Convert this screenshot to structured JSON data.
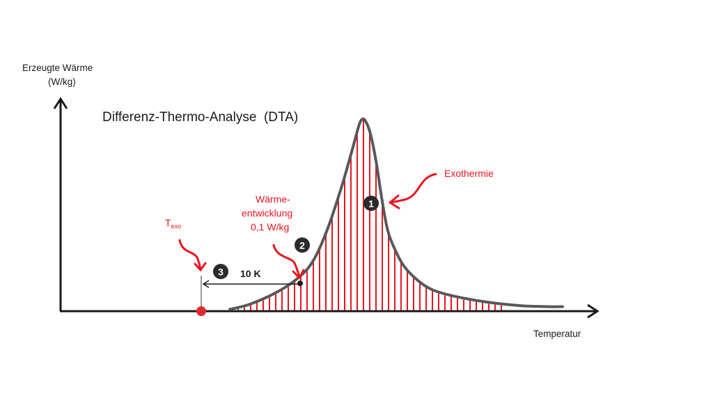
{
  "chart_data": {
    "type": "area",
    "title": "Differenz-Thermo-Analyse  (DTA)",
    "ylabel_line1": "Erzeugte Wärme",
    "ylabel_line2": "(W/kg)",
    "xlabel": "Temperatur",
    "grid": false,
    "legend": "none",
    "curve": {
      "x": [
        330,
        360,
        400,
        430,
        450,
        470,
        490,
        505,
        515,
        520,
        525,
        532,
        540,
        548,
        556,
        565,
        580,
        600,
        620,
        650,
        700,
        750,
        790,
        808
      ],
      "y": [
        1,
        4,
        11,
        19,
        28,
        45,
        68,
        88,
        102,
        106,
        105,
        98,
        83,
        63,
        46,
        36,
        25,
        17,
        12,
        8.5,
        5,
        3,
        2.5,
        2.5
      ]
    },
    "annotations": {
      "exothermie": "Exothermie",
      "waerme_line1": "Wärme-",
      "waerme_line2": "entwicklung",
      "waerme_line3": "0,1 W/kg",
      "texo_main": "T",
      "texo_sub": "exo",
      "delta": "10 K",
      "marker1": "1",
      "marker2": "2",
      "marker3": "3"
    },
    "colors": {
      "curve": "#58585a",
      "fill_lines": "#e8141e",
      "accent": "#e8141e",
      "axis": "#1a1a1a",
      "marker_bg": "#2b2b2b",
      "point": "#e02a32"
    }
  }
}
